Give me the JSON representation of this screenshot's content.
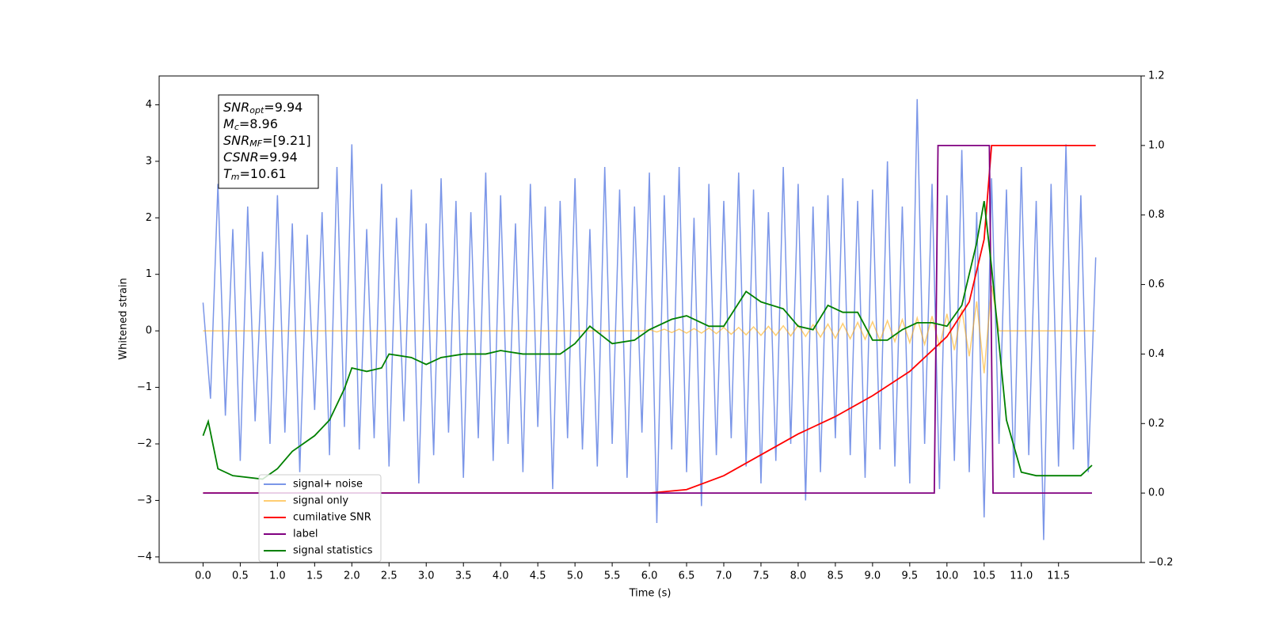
{
  "chart_data": {
    "type": "line",
    "xlabel": "Time (s)",
    "ylabel": "Whitened strain",
    "xlim": [
      -0.59,
      12.61
    ],
    "ylim": [
      -4.1,
      4.51
    ],
    "y2lim": [
      -0.2,
      1.2
    ],
    "xticks": [
      {
        "value": 0,
        "label": "0.0"
      },
      0.5,
      {
        "value": 1,
        "label": "1.0"
      },
      1.5,
      {
        "value": 2,
        "label": "2.0"
      },
      2.5,
      {
        "value": 3,
        "label": "3.0"
      },
      3.5,
      {
        "value": 4,
        "label": "4.0"
      },
      4.5,
      {
        "value": 5,
        "label": "5.0"
      },
      5.5,
      {
        "value": 6,
        "label": "6.0"
      },
      6.5,
      {
        "value": 7,
        "label": "7.0"
      },
      7.5,
      {
        "value": 8,
        "label": "8.0"
      },
      8.5,
      {
        "value": 9,
        "label": "9.0"
      },
      9.5,
      {
        "value": 10,
        "label": "10.0"
      },
      10.5,
      {
        "value": 11,
        "label": "11.0"
      },
      11.5
    ],
    "yticks": [
      {
        "value": -4,
        "label": "−4"
      },
      {
        "value": -3,
        "label": "−3"
      },
      {
        "value": -2,
        "label": "−2"
      },
      {
        "value": -1,
        "label": "−1"
      },
      0,
      1,
      2,
      3,
      4
    ],
    "y2ticks": [
      {
        "value": -0.2,
        "label": "−0.2"
      },
      {
        "value": 0,
        "label": "0.0"
      },
      0.2,
      0.4,
      0.6,
      0.8,
      {
        "value": 1,
        "label": "1.0"
      },
      1.2
    ],
    "legend": "lower left",
    "annotations": [
      {
        "symbol": "SNR",
        "subscript": "opt",
        "text": "=9.94"
      },
      {
        "symbol": "M",
        "subscript": "c",
        "text": "=8.96"
      },
      {
        "symbol": "SNR",
        "subscript": "MF",
        "text": "=[9.21]"
      },
      {
        "symbol": "CSNR",
        "text": "=9.94"
      },
      {
        "symbol": "T",
        "subscript": "m",
        "text": "=10.61"
      }
    ],
    "x": [
      0,
      0.1,
      0.2,
      0.3,
      0.4,
      0.5,
      0.6,
      0.7,
      0.8,
      0.9,
      1,
      1.1,
      1.2,
      1.3,
      1.4,
      1.5,
      1.6,
      1.7,
      1.8,
      1.9,
      2,
      2.1,
      2.2,
      2.3,
      2.4,
      2.5,
      2.6,
      2.7,
      2.8,
      2.9,
      3,
      3.1,
      3.2,
      3.3,
      3.4,
      3.5,
      3.6,
      3.7,
      3.8,
      3.9,
      4,
      4.1,
      4.2,
      4.3,
      4.4,
      4.5,
      4.6,
      4.7,
      4.8,
      4.9,
      5,
      5.1,
      5.2,
      5.3,
      5.4,
      5.5,
      5.6,
      5.7,
      5.8,
      5.9,
      6,
      6.1,
      6.2,
      6.3,
      6.4,
      6.5,
      6.6,
      6.7,
      6.8,
      6.9,
      7,
      7.1,
      7.2,
      7.3,
      7.4,
      7.5,
      7.6,
      7.7,
      7.8,
      7.9,
      8,
      8.1,
      8.2,
      8.3,
      8.4,
      8.5,
      8.6,
      8.7,
      8.8,
      8.9,
      9,
      9.1,
      9.2,
      9.3,
      9.4,
      9.5,
      9.6,
      9.7,
      9.8,
      9.9,
      10,
      10.1,
      10.2,
      10.3,
      10.4,
      10.5,
      10.6,
      10.7,
      10.8,
      10.9,
      11,
      11.1,
      11.2,
      11.3,
      11.4,
      11.5,
      11.6,
      11.7,
      11.8,
      11.9,
      12
    ],
    "series": [
      {
        "name": "signal+ noise",
        "color": "#7b96e8",
        "values": [
          0.5,
          -1.2,
          2.6,
          -1.5,
          1.8,
          -2.3,
          2.2,
          -1.6,
          1.4,
          -2.0,
          2.4,
          -1.8,
          1.9,
          -2.5,
          1.7,
          -1.4,
          2.1,
          -2.2,
          2.9,
          -1.7,
          3.3,
          -2.1,
          1.8,
          -1.9,
          2.6,
          -2.4,
          2.0,
          -1.6,
          2.5,
          -2.7,
          1.9,
          -2.2,
          2.7,
          -1.8,
          2.3,
          -2.6,
          2.1,
          -1.9,
          2.8,
          -2.3,
          2.4,
          -2.0,
          1.9,
          -2.5,
          2.6,
          -1.7,
          2.2,
          -2.8,
          2.3,
          -1.9,
          2.7,
          -2.1,
          1.8,
          -2.4,
          2.9,
          -2.0,
          2.5,
          -2.6,
          2.2,
          -1.8,
          2.8,
          -3.4,
          2.4,
          -2.1,
          2.9,
          -2.5,
          2.0,
          -3.1,
          2.6,
          -2.2,
          2.3,
          -1.9,
          2.8,
          -2.4,
          2.5,
          -2.7,
          2.1,
          -2.3,
          2.9,
          -2.0,
          2.6,
          -3.0,
          2.2,
          -2.5,
          2.4,
          -1.9,
          2.7,
          -2.2,
          2.3,
          -2.6,
          2.5,
          -2.1,
          3.0,
          -2.4,
          2.2,
          -2.7,
          4.1,
          -2.0,
          2.6,
          -2.8,
          2.4,
          -2.3,
          3.2,
          -2.5,
          2.1,
          -3.3,
          2.7,
          -2.0,
          2.5,
          -2.6,
          2.9,
          -2.2,
          2.3,
          -3.7,
          2.6,
          -2.4,
          3.3,
          -2.1,
          2.4,
          -2.5,
          1.3
        ]
      },
      {
        "name": "signal only",
        "color": "#ffa500",
        "values": [
          0,
          0,
          0,
          0,
          0,
          0,
          0,
          0,
          0,
          0,
          0,
          0,
          0,
          0,
          0,
          0,
          0,
          0,
          0,
          0,
          0,
          0,
          0,
          0,
          0,
          0,
          0,
          0,
          0,
          0,
          0,
          0,
          0,
          0,
          0,
          0,
          0,
          0,
          0,
          0,
          0,
          0,
          0,
          0,
          0,
          0,
          0,
          0,
          0,
          0,
          0,
          0,
          0,
          0,
          0,
          0,
          0,
          0,
          0,
          0,
          0.02,
          -0.02,
          0.03,
          -0.03,
          0.03,
          -0.04,
          0.04,
          -0.04,
          0.05,
          -0.05,
          0.06,
          -0.06,
          0.06,
          -0.07,
          0.07,
          -0.08,
          0.08,
          -0.08,
          0.09,
          -0.09,
          0.1,
          -0.1,
          0.11,
          -0.11,
          0.12,
          -0.13,
          0.13,
          -0.14,
          0.15,
          -0.15,
          0.16,
          -0.17,
          0.18,
          -0.19,
          0.2,
          -0.21,
          0.23,
          -0.24,
          0.26,
          -0.28,
          0.3,
          -0.34,
          0.38,
          -0.45,
          0.52,
          -0.75,
          0.8,
          0,
          0,
          0,
          0,
          0,
          0,
          0,
          0,
          0,
          0,
          0,
          0,
          0,
          0
        ]
      },
      {
        "name": "cumilative SNR",
        "color": "#ff0000",
        "axis": "y2",
        "x": [
          0,
          6,
          6.5,
          7,
          7.5,
          8,
          8.5,
          9,
          9.5,
          10,
          10.3,
          10.5,
          10.6,
          12
        ],
        "values": [
          0,
          0,
          0.01,
          0.05,
          0.11,
          0.17,
          0.22,
          0.28,
          0.35,
          0.45,
          0.55,
          0.73,
          1,
          1
        ]
      },
      {
        "name": "label",
        "color": "#800080",
        "axis": "y2",
        "x": [
          0,
          9.83,
          9.88,
          10.57,
          10.62,
          11.95
        ],
        "values": [
          0,
          0,
          1,
          1,
          0,
          0
        ]
      },
      {
        "name": "signal statistics",
        "color": "#008000",
        "axis": "y2",
        "x": [
          0,
          0.07,
          0.2,
          0.4,
          0.8,
          1,
          1.2,
          1.5,
          1.7,
          1.9,
          2,
          2.2,
          2.4,
          2.5,
          2.8,
          3,
          3.2,
          3.5,
          3.8,
          4,
          4.3,
          4.5,
          4.8,
          5,
          5.2,
          5.5,
          5.8,
          6,
          6.3,
          6.5,
          6.8,
          7,
          7.3,
          7.5,
          7.8,
          8,
          8.2,
          8.4,
          8.6,
          8.8,
          9,
          9.2,
          9.4,
          9.6,
          9.8,
          10,
          10.2,
          10.4,
          10.5,
          10.6,
          10.8,
          11,
          11.2,
          11.5,
          11.8,
          11.95
        ],
        "values": [
          0.165,
          0.206,
          0.07,
          0.05,
          0.04,
          0.07,
          0.12,
          0.165,
          0.21,
          0.3,
          0.36,
          0.35,
          0.36,
          0.4,
          0.39,
          0.37,
          0.39,
          0.4,
          0.4,
          0.41,
          0.4,
          0.4,
          0.4,
          0.43,
          0.48,
          0.43,
          0.44,
          0.47,
          0.5,
          0.51,
          0.48,
          0.48,
          0.58,
          0.55,
          0.53,
          0.48,
          0.47,
          0.54,
          0.52,
          0.52,
          0.44,
          0.44,
          0.47,
          0.49,
          0.49,
          0.48,
          0.54,
          0.72,
          0.84,
          0.65,
          0.21,
          0.06,
          0.05,
          0.05,
          0.05,
          0.08
        ]
      }
    ]
  }
}
